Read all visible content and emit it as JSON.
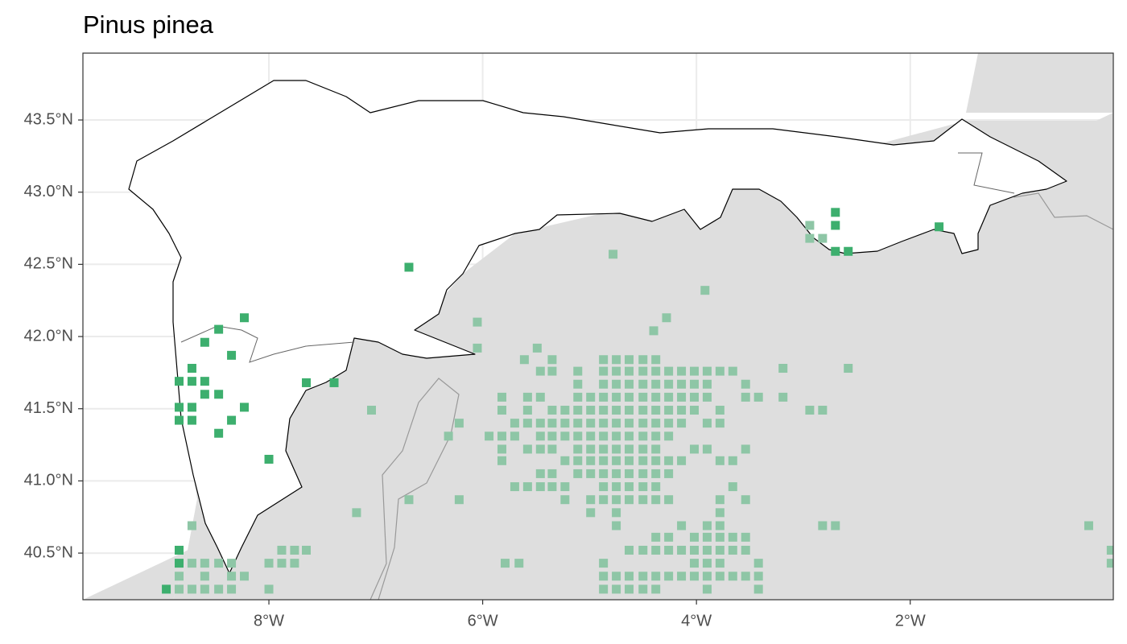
{
  "chart_data": {
    "type": "scatter",
    "title": "Pinus pinea",
    "xlim": [
      -9.74,
      -0.1
    ],
    "ylim": [
      40.177,
      43.963
    ],
    "xticks": [
      {
        "value": -8,
        "label": "8°W"
      },
      {
        "value": -6,
        "label": "6°W"
      },
      {
        "value": -4,
        "label": "4°W"
      },
      {
        "value": -2,
        "label": "2°W"
      }
    ],
    "yticks": [
      {
        "value": 40.5,
        "label": "40.5°N"
      },
      {
        "value": 41.0,
        "label": "41.0°N"
      },
      {
        "value": 41.5,
        "label": "41.5°N"
      },
      {
        "value": 42.0,
        "label": "42.0°N"
      },
      {
        "value": 42.5,
        "label": "42.5°N"
      },
      {
        "value": 43.0,
        "label": "43.0°N"
      },
      {
        "value": 43.5,
        "label": "43.5°N"
      }
    ],
    "grid": true,
    "series": [
      {
        "color": "#3daf6e",
        "x": [
          -6.69,
          -8.23,
          -8.47,
          -8.6,
          -8.35,
          -8.72,
          -8.84,
          -8.72,
          -8.6,
          -8.6,
          -8.47,
          -8.84,
          -8.72,
          -8.23,
          -8.35,
          -8.84,
          -8.72,
          -8.47,
          -8.0,
          -7.65,
          -7.39,
          -2.7,
          -2.7,
          -2.7,
          -2.58,
          -1.73,
          -8.84,
          -8.84,
          -8.96
        ],
        "y": [
          42.48,
          42.13,
          42.05,
          41.96,
          41.87,
          41.78,
          41.69,
          41.69,
          41.69,
          41.6,
          41.6,
          41.51,
          41.51,
          41.51,
          41.42,
          41.42,
          41.42,
          41.33,
          41.15,
          41.68,
          41.68,
          42.86,
          42.77,
          42.59,
          42.59,
          42.76,
          40.52,
          40.43,
          40.25
        ]
      },
      {
        "color": "#8ec6a6",
        "x": [
          -4.78,
          -3.92,
          -4.28,
          -4.4,
          -6.05,
          -6.05,
          -5.49,
          -5.61,
          -5.35,
          -4.87,
          -4.75,
          -4.63,
          -4.5,
          -4.38,
          -3.19,
          -2.58,
          -5.46,
          -5.35,
          -5.11,
          -4.87,
          -4.75,
          -4.63,
          -4.5,
          -4.38,
          -4.26,
          -4.14,
          -4.02,
          -3.9,
          -3.78,
          -3.66,
          -5.11,
          -4.87,
          -4.75,
          -4.63,
          -4.5,
          -4.38,
          -4.26,
          -4.14,
          -4.02,
          -3.9,
          -3.54,
          -5.82,
          -5.58,
          -5.46,
          -5.11,
          -4.99,
          -4.87,
          -4.75,
          -4.63,
          -4.5,
          -4.38,
          -4.26,
          -4.14,
          -4.02,
          -3.9,
          -3.54,
          -3.42,
          -3.19,
          -7.04,
          -5.82,
          -5.58,
          -5.35,
          -5.23,
          -5.11,
          -4.99,
          -4.87,
          -4.75,
          -4.63,
          -4.5,
          -4.38,
          -4.26,
          -4.14,
          -4.02,
          -3.78,
          -2.94,
          -2.82,
          -6.22,
          -5.7,
          -5.58,
          -5.46,
          -5.35,
          -5.23,
          -5.11,
          -4.99,
          -4.87,
          -4.75,
          -4.63,
          -4.5,
          -4.38,
          -4.26,
          -4.14,
          -3.9,
          -3.78,
          -6.32,
          -5.94,
          -5.82,
          -5.7,
          -5.46,
          -5.35,
          -5.23,
          -5.11,
          -4.99,
          -4.87,
          -4.75,
          -4.63,
          -4.5,
          -4.38,
          -4.26,
          -5.82,
          -5.58,
          -5.46,
          -5.35,
          -5.11,
          -4.99,
          -4.87,
          -4.75,
          -4.63,
          -4.5,
          -4.38,
          -4.02,
          -3.9,
          -3.54,
          -5.82,
          -5.23,
          -5.11,
          -4.99,
          -4.87,
          -4.75,
          -4.63,
          -4.5,
          -4.38,
          -4.26,
          -4.14,
          -3.78,
          -3.66,
          -5.46,
          -5.35,
          -5.11,
          -4.99,
          -4.87,
          -4.75,
          -4.63,
          -4.5,
          -4.38,
          -4.26,
          -5.7,
          -5.58,
          -5.46,
          -5.35,
          -5.23,
          -4.87,
          -4.75,
          -4.63,
          -4.5,
          -4.38,
          -3.66,
          -6.69,
          -6.22,
          -5.23,
          -4.99,
          -4.87,
          -4.75,
          -4.63,
          -4.5,
          -4.38,
          -4.26,
          -3.78,
          -3.54,
          -7.18,
          -4.99,
          -4.75,
          -3.78,
          -4.75,
          -4.14,
          -3.9,
          -3.78,
          -2.82,
          -2.7,
          -0.33,
          -8.72,
          -4.38,
          -4.26,
          -4.02,
          -3.9,
          -3.78,
          -3.66,
          -3.54,
          -7.88,
          -7.76,
          -7.65,
          -4.63,
          -4.5,
          -4.38,
          -4.26,
          -4.14,
          -4.02,
          -3.9,
          -3.78,
          -3.66,
          -3.54,
          -0.12,
          -8.0,
          -7.88,
          -7.76,
          -5.79,
          -5.66,
          -4.87,
          -4.02,
          -3.9,
          -3.78,
          -3.42,
          -8.72,
          -8.6,
          -8.47,
          -8.35,
          -0.12,
          -4.87,
          -4.75,
          -4.63,
          -4.5,
          -4.38,
          -4.26,
          -4.14,
          -4.02,
          -3.9,
          -3.78,
          -3.66,
          -3.54,
          -3.42,
          -8.84,
          -8.6,
          -8.35,
          -8.23,
          -8.0,
          -4.87,
          -4.75,
          -4.63,
          -4.5,
          -4.38,
          -3.9,
          -3.42,
          -8.84,
          -8.72,
          -8.6,
          -8.47,
          -8.35,
          -2.94,
          -2.94,
          -2.82
        ],
        "y": [
          42.57,
          42.32,
          42.13,
          42.04,
          42.1,
          41.92,
          41.92,
          41.84,
          41.84,
          41.84,
          41.84,
          41.84,
          41.84,
          41.84,
          41.78,
          41.78,
          41.76,
          41.76,
          41.76,
          41.76,
          41.76,
          41.76,
          41.76,
          41.76,
          41.76,
          41.76,
          41.76,
          41.76,
          41.76,
          41.76,
          41.67,
          41.67,
          41.67,
          41.67,
          41.67,
          41.67,
          41.67,
          41.67,
          41.67,
          41.67,
          41.67,
          41.58,
          41.58,
          41.58,
          41.58,
          41.58,
          41.58,
          41.58,
          41.58,
          41.58,
          41.58,
          41.58,
          41.58,
          41.58,
          41.58,
          41.58,
          41.58,
          41.58,
          41.49,
          41.49,
          41.49,
          41.49,
          41.49,
          41.49,
          41.49,
          41.49,
          41.49,
          41.49,
          41.49,
          41.49,
          41.49,
          41.49,
          41.49,
          41.49,
          41.49,
          41.49,
          41.4,
          41.4,
          41.4,
          41.4,
          41.4,
          41.4,
          41.4,
          41.4,
          41.4,
          41.4,
          41.4,
          41.4,
          41.4,
          41.4,
          41.4,
          41.4,
          41.4,
          41.31,
          41.31,
          41.31,
          41.31,
          41.31,
          41.31,
          41.31,
          41.31,
          41.31,
          41.31,
          41.31,
          41.31,
          41.31,
          41.31,
          41.31,
          41.22,
          41.22,
          41.22,
          41.22,
          41.22,
          41.22,
          41.22,
          41.22,
          41.22,
          41.22,
          41.22,
          41.22,
          41.22,
          41.22,
          41.14,
          41.14,
          41.14,
          41.14,
          41.14,
          41.14,
          41.14,
          41.14,
          41.14,
          41.14,
          41.14,
          41.14,
          41.14,
          41.05,
          41.05,
          41.05,
          41.05,
          41.05,
          41.05,
          41.05,
          41.05,
          41.05,
          41.05,
          40.96,
          40.96,
          40.96,
          40.96,
          40.96,
          40.96,
          40.96,
          40.96,
          40.96,
          40.96,
          40.96,
          40.87,
          40.87,
          40.87,
          40.87,
          40.87,
          40.87,
          40.87,
          40.87,
          40.87,
          40.87,
          40.87,
          40.87,
          40.78,
          40.78,
          40.78,
          40.78,
          40.69,
          40.69,
          40.69,
          40.69,
          40.69,
          40.69,
          40.69,
          40.69,
          40.61,
          40.61,
          40.61,
          40.61,
          40.61,
          40.61,
          40.61,
          40.52,
          40.52,
          40.52,
          40.52,
          40.52,
          40.52,
          40.52,
          40.52,
          40.52,
          40.52,
          40.52,
          40.52,
          40.52,
          40.52,
          40.43,
          40.43,
          40.43,
          40.43,
          40.43,
          40.43,
          40.43,
          40.43,
          40.43,
          40.43,
          40.43,
          40.43,
          40.43,
          40.43,
          40.43,
          40.34,
          40.34,
          40.34,
          40.34,
          40.34,
          40.34,
          40.34,
          40.34,
          40.34,
          40.34,
          40.34,
          40.34,
          40.34,
          40.34,
          40.34,
          40.34,
          40.34,
          40.25,
          40.25,
          40.25,
          40.25,
          40.25,
          40.25,
          40.25,
          40.25,
          40.25,
          40.25,
          40.25,
          40.25,
          40.25,
          42.77,
          42.68,
          42.68
        ]
      }
    ]
  }
}
